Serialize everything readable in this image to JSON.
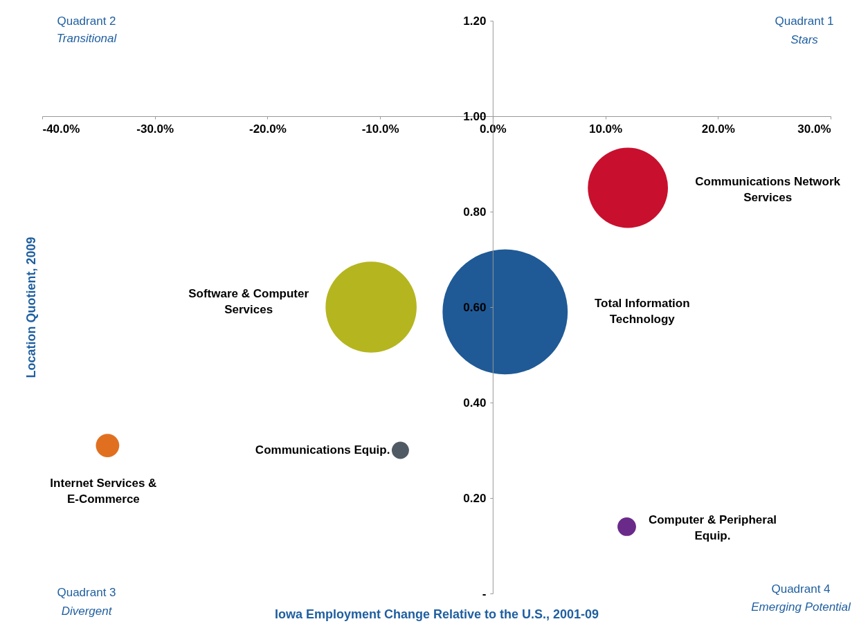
{
  "chart_data": {
    "type": "bubble",
    "xlabel": "Iowa Employment Change Relative to the U.S., 2001-09",
    "ylabel": "Location Quotient, 2009",
    "xlim": [
      -40,
      30
    ],
    "ylim": [
      0,
      1.2
    ],
    "xticks": [
      {
        "value": -40,
        "label": "-40.0%"
      },
      {
        "value": -30,
        "label": "-30.0%"
      },
      {
        "value": -20,
        "label": "-20.0%"
      },
      {
        "value": -10,
        "label": "-10.0%"
      },
      {
        "value": 0,
        "label": "0.0%"
      },
      {
        "value": 10,
        "label": "10.0%"
      },
      {
        "value": 20,
        "label": "20.0%"
      },
      {
        "value": 30,
        "label": "30.0%"
      }
    ],
    "yticks": [
      {
        "value": 0,
        "label": "-"
      },
      {
        "value": 0.2,
        "label": "0.20"
      },
      {
        "value": 0.4,
        "label": "0.40"
      },
      {
        "value": 0.6,
        "label": "0.60"
      },
      {
        "value": 0.8,
        "label": "0.80"
      },
      {
        "value": 1.0,
        "label": "1.00"
      },
      {
        "value": 1.2,
        "label": "1.20"
      }
    ],
    "grid": false,
    "legend": false,
    "marker": "circle",
    "series": [
      {
        "name": "Communications Network\nServices",
        "color": "#c8102e",
        "x": [
          12
        ],
        "values": [
          0.85
        ],
        "sizes": [
          0.41
        ]
      },
      {
        "name": "Total Information\nTechnology",
        "color": "#1f5a96",
        "x": [
          1.1
        ],
        "values": [
          0.59
        ],
        "sizes": [
          1
        ]
      },
      {
        "name": "Software & Computer\nServices",
        "color": "#b5b520",
        "x": [
          -10.8
        ],
        "values": [
          0.6
        ],
        "sizes": [
          0.53
        ]
      },
      {
        "name": "Internet Services &\nE-Commerce",
        "color": "#e07020",
        "x": [
          -34.2
        ],
        "values": [
          0.31
        ],
        "sizes": [
          0.035
        ]
      },
      {
        "name": "Communications Equip.",
        "color": "#505a64",
        "x": [
          -8.2
        ],
        "values": [
          0.3
        ],
        "sizes": [
          0.019
        ]
      },
      {
        "name": "Computer & Peripheral\nEquip.",
        "color": "#6a2a8a",
        "x": [
          11.9
        ],
        "values": [
          0.14
        ],
        "sizes": [
          0.022
        ]
      }
    ],
    "annotations": [
      "Quadrant 2",
      "Transitional",
      "Quadrant 1",
      "Stars",
      "Quadrant 3",
      "Divergent",
      "Quadrant 4",
      "Emerging Potential"
    ]
  }
}
